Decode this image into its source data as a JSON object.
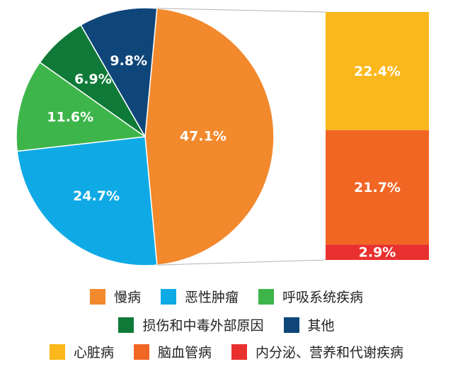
{
  "chart_data": {
    "type": "pie",
    "pie": {
      "slices": [
        {
          "label": "慢病",
          "value": 47.1,
          "display": "47.1%",
          "color": "#F2892C"
        },
        {
          "label": "恶性肿瘤",
          "value": 24.7,
          "display": "24.7%",
          "color": "#0FAAE6"
        },
        {
          "label": "呼吸系统疾病",
          "value": 11.6,
          "display": "11.6%",
          "color": "#3DB54A"
        },
        {
          "label": "损伤和中毒外部原因",
          "value": 6.9,
          "display": "6.9%",
          "color": "#0F7A37"
        },
        {
          "label": "其他",
          "value": 9.8,
          "display": "9.8%",
          "color": "#0F467A"
        }
      ]
    },
    "breakdown_of": "慢病",
    "breakdown": [
      {
        "label": "心脏病",
        "value": 22.4,
        "display": "22.4%",
        "color": "#FBB81C"
      },
      {
        "label": "脑血管病",
        "value": 21.7,
        "display": "21.7%",
        "color": "#F26624"
      },
      {
        "label": "内分泌、营养和代谢疾病",
        "value": 2.9,
        "display": "2.9%",
        "color": "#E8312F"
      }
    ]
  },
  "legend": {
    "row1": [
      {
        "label": "慢病",
        "color": "#F2892C"
      },
      {
        "label": "恶性肿瘤",
        "color": "#0FAAE6"
      },
      {
        "label": "呼吸系统疾病",
        "color": "#3DB54A"
      }
    ],
    "row2": [
      {
        "label": "损伤和中毒外部原因",
        "color": "#0F7A37"
      },
      {
        "label": "其他",
        "color": "#0F467A"
      }
    ],
    "row3": [
      {
        "label": "心脏病",
        "color": "#FBB81C"
      },
      {
        "label": "脑血管病",
        "color": "#F26624"
      },
      {
        "label": "内分泌、营养和代谢疾病",
        "color": "#E8312F"
      }
    ]
  }
}
